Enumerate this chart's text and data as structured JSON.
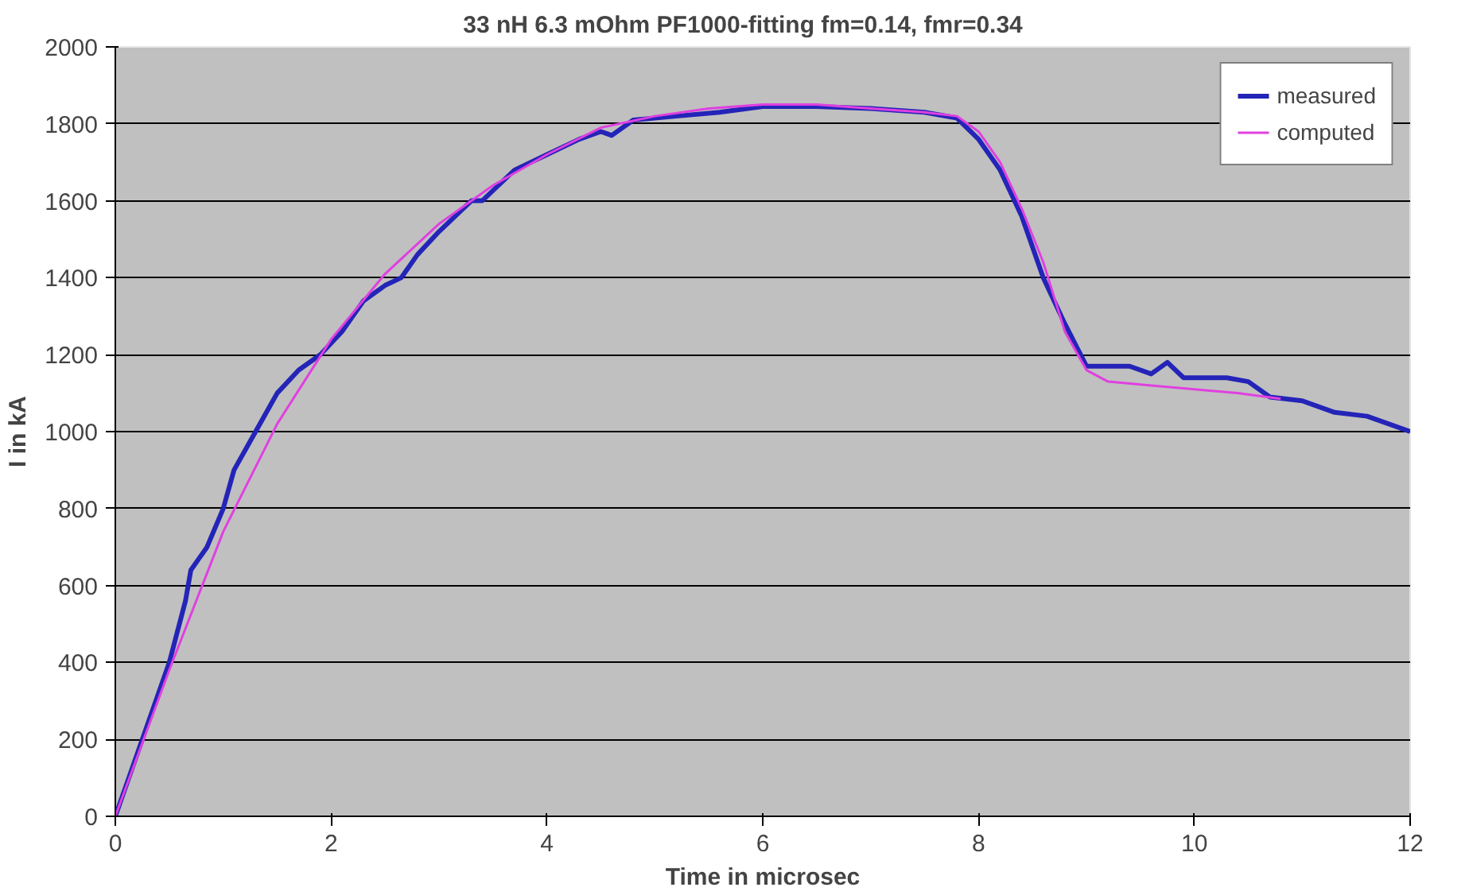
{
  "chart_data": {
    "type": "line",
    "title": "33 nH    6.3 mOhm   PF1000-fitting fm=0.14,  fmr=0.34",
    "xlabel": "Time in microsec",
    "ylabel": "I in kA",
    "xlim": [
      0,
      12
    ],
    "xticks": [
      0,
      2,
      4,
      6,
      8,
      10,
      12
    ],
    "ylim": [
      0,
      2000
    ],
    "yticks": [
      0,
      200,
      400,
      600,
      800,
      1000,
      1200,
      1400,
      1600,
      1800,
      2000
    ],
    "grid": "y",
    "legend": "top right",
    "marker": "none",
    "line_style": "solid",
    "series": [
      {
        "name": "measured",
        "color": "#2424b8",
        "x": [
          0,
          0.25,
          0.5,
          0.65,
          0.7,
          0.85,
          1.0,
          1.1,
          1.3,
          1.5,
          1.7,
          1.9,
          2.1,
          2.3,
          2.5,
          2.65,
          2.8,
          3.0,
          3.3,
          3.4,
          3.7,
          4.0,
          4.3,
          4.5,
          4.6,
          4.8,
          5.2,
          5.6,
          6.0,
          6.5,
          7.0,
          7.5,
          7.8,
          8.0,
          8.2,
          8.4,
          8.6,
          8.8,
          9.0,
          9.2,
          9.4,
          9.6,
          9.75,
          9.9,
          10.3,
          10.5,
          10.7,
          11.0,
          11.3,
          11.6,
          12
        ],
        "values": [
          0,
          200,
          400,
          560,
          640,
          700,
          800,
          900,
          1000,
          1100,
          1160,
          1200,
          1260,
          1340,
          1380,
          1400,
          1460,
          1520,
          1600,
          1600,
          1680,
          1720,
          1760,
          1780,
          1770,
          1810,
          1820,
          1830,
          1845,
          1845,
          1840,
          1830,
          1815,
          1760,
          1680,
          1560,
          1400,
          1280,
          1170,
          1170,
          1170,
          1150,
          1180,
          1140,
          1140,
          1130,
          1090,
          1080,
          1050,
          1040,
          1000
        ]
      },
      {
        "name": "computed",
        "color": "#e040e0",
        "x": [
          0,
          0.5,
          1.0,
          1.5,
          2.0,
          2.5,
          3.0,
          3.5,
          4.0,
          4.5,
          5.0,
          5.5,
          6.0,
          6.5,
          7.0,
          7.5,
          7.8,
          8.0,
          8.2,
          8.4,
          8.6,
          8.8,
          9.0,
          9.2,
          9.6,
          10.0,
          10.4,
          10.8
        ],
        "values": [
          0,
          380,
          740,
          1020,
          1240,
          1410,
          1540,
          1640,
          1720,
          1790,
          1820,
          1840,
          1850,
          1850,
          1840,
          1830,
          1820,
          1780,
          1700,
          1580,
          1440,
          1260,
          1160,
          1130,
          1120,
          1110,
          1100,
          1085
        ]
      }
    ]
  }
}
